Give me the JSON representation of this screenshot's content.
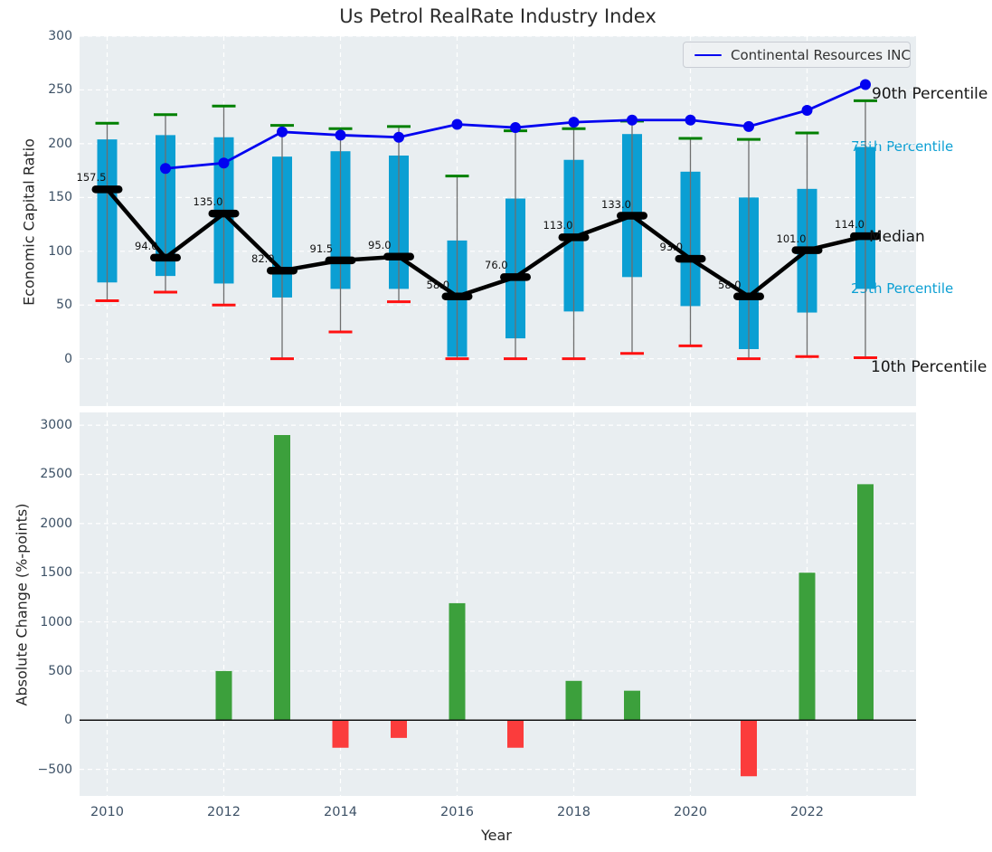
{
  "title": "Us Petrol RealRate Industry Index",
  "legend": {
    "label": "Continental Resources INC"
  },
  "axes": {
    "top_ylabel": "Economic Capital Ratio",
    "bottom_ylabel": "Absolute Change (%-points)",
    "xlabel": "Year"
  },
  "colors": {
    "panel_bg": "#e9eef1",
    "grid": "#ffffff",
    "box_fill": "#0b9fd3",
    "whisker": "#6e6e6e",
    "cap_high": "#008000",
    "cap_low": "#ff1111",
    "median": "#000000",
    "company_line": "#0202f0",
    "bar_positive": "#3ca03c",
    "bar_negative": "#fb3c3c",
    "tick_text": "#3d5166"
  },
  "chart_data": [
    {
      "type": "boxplot+line",
      "title": "Us Petrol RealRate Industry Index",
      "ylabel": "Economic Capital Ratio",
      "ylim": [
        -44,
        300
      ],
      "yticks": [
        0,
        50,
        100,
        150,
        200,
        250,
        300
      ],
      "grid": true,
      "legend_position": "upper right",
      "years": [
        2010,
        2011,
        2012,
        2013,
        2014,
        2015,
        2016,
        2017,
        2018,
        2019,
        2020,
        2021,
        2022,
        2023
      ],
      "boxes": [
        {
          "year": 2010,
          "whisker_low": 54,
          "q1": 71,
          "median": 157.5,
          "q3": 204,
          "whisker_high": 219
        },
        {
          "year": 2011,
          "whisker_low": 62,
          "q1": 77,
          "median": 94.0,
          "q3": 208,
          "whisker_high": 227
        },
        {
          "year": 2012,
          "whisker_low": 50,
          "q1": 70,
          "median": 135.0,
          "q3": 206,
          "whisker_high": 235
        },
        {
          "year": 2013,
          "whisker_low": 0,
          "q1": 57,
          "median": 82.0,
          "q3": 188,
          "whisker_high": 217
        },
        {
          "year": 2014,
          "whisker_low": 25,
          "q1": 65,
          "median": 91.5,
          "q3": 193,
          "whisker_high": 214
        },
        {
          "year": 2015,
          "whisker_low": 53,
          "q1": 65,
          "median": 95.0,
          "q3": 189,
          "whisker_high": 216
        },
        {
          "year": 2016,
          "whisker_low": 0,
          "q1": 2,
          "median": 58.0,
          "q3": 110,
          "whisker_high": 170
        },
        {
          "year": 2017,
          "whisker_low": 0,
          "q1": 19,
          "median": 76.0,
          "q3": 149,
          "whisker_high": 212
        },
        {
          "year": 2018,
          "whisker_low": 0,
          "q1": 44,
          "median": 113.0,
          "q3": 185,
          "whisker_high": 214
        },
        {
          "year": 2019,
          "whisker_low": 5,
          "q1": 76,
          "median": 133.0,
          "q3": 209,
          "whisker_high": 221
        },
        {
          "year": 2020,
          "whisker_low": 12,
          "q1": 49,
          "median": 93.0,
          "q3": 174,
          "whisker_high": 205
        },
        {
          "year": 2021,
          "whisker_low": 0,
          "q1": 9,
          "median": 58.0,
          "q3": 150,
          "whisker_high": 204
        },
        {
          "year": 2022,
          "whisker_low": 2,
          "q1": 43,
          "median": 101.0,
          "q3": 158,
          "whisker_high": 210
        },
        {
          "year": 2023,
          "whisker_low": 1,
          "q1": 65,
          "median": 114.0,
          "q3": 197,
          "whisker_high": 240
        }
      ],
      "median_labels": [
        "157.5",
        "94.0",
        "135.0",
        "82.0",
        "91.5",
        "95.0",
        "58.0",
        "76.0",
        "113.0",
        "133.0",
        "93.0",
        "58.0",
        "101.0",
        "114.0"
      ],
      "series": [
        {
          "name": "Continental Resources INC",
          "x": [
            2011,
            2012,
            2013,
            2014,
            2015,
            2016,
            2017,
            2018,
            2019,
            2020,
            2021,
            2022,
            2023
          ],
          "y": [
            177,
            182,
            211,
            208,
            206,
            218,
            215,
            220,
            222,
            222,
            216,
            231,
            255
          ]
        }
      ],
      "right_labels": [
        {
          "text": "90th Percentile",
          "style": "dark",
          "value": 246,
          "x": 964
        },
        {
          "text": "75th Percentile",
          "style": "cyan",
          "value": 197,
          "x": 941
        },
        {
          "text": "Median",
          "style": "dark",
          "value": 113.5,
          "x": 961
        },
        {
          "text": "25th Percentile",
          "style": "cyan",
          "value": 65,
          "x": 941
        },
        {
          "text": "10th Percentile",
          "style": "dark",
          "value": -8,
          "x": 963
        }
      ]
    },
    {
      "type": "bar",
      "ylabel": "Absolute Change (%-points)",
      "xlabel": "Year",
      "ylim": [
        -770,
        3130
      ],
      "yticks": [
        -500,
        0,
        500,
        1000,
        1500,
        2000,
        2500,
        3000
      ],
      "xticks": [
        2010,
        2012,
        2014,
        2016,
        2018,
        2020,
        2022
      ],
      "grid": true,
      "categories": [
        2010,
        2011,
        2012,
        2013,
        2014,
        2015,
        2016,
        2017,
        2018,
        2019,
        2020,
        2021,
        2022,
        2023
      ],
      "values": [
        0,
        0,
        500,
        2900,
        -280,
        -180,
        1190,
        -280,
        400,
        300,
        0,
        -570,
        1500,
        2400
      ]
    }
  ]
}
